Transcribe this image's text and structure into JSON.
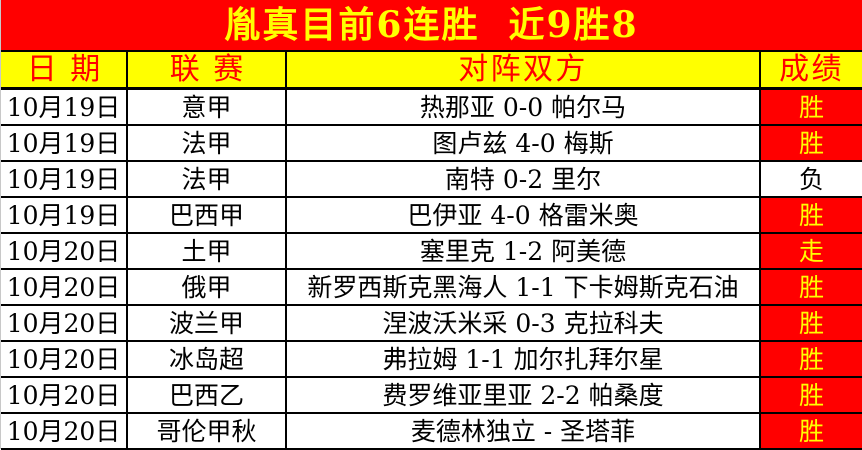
{
  "title": {
    "text": "胤真目前6连胜  近9胜8"
  },
  "colors": {
    "title_bg": "#ff0000",
    "title_text": "#ffff00",
    "header_bg": "#ffff00",
    "header_text": "#ff0000",
    "win_bg": "#ff0000",
    "win_text": "#ffff00",
    "loss_bg": "#ffffff",
    "loss_text": "#000000",
    "border": "#000000"
  },
  "table": {
    "headers": [
      "日期",
      "联赛",
      "对阵双方",
      "成绩"
    ],
    "rows": [
      {
        "date": "10月19日",
        "league": "意甲",
        "match": "热那亚 0-0 帕尔马",
        "result": "胜",
        "highlight": true
      },
      {
        "date": "10月19日",
        "league": "法甲",
        "match": "图卢兹 4-0 梅斯",
        "result": "胜",
        "highlight": true
      },
      {
        "date": "10月19日",
        "league": "法甲",
        "match": "南特 0-2 里尔",
        "result": "负",
        "highlight": false
      },
      {
        "date": "10月19日",
        "league": "巴西甲",
        "match": "巴伊亚 4-0 格雷米奥",
        "result": "胜",
        "highlight": true
      },
      {
        "date": "10月20日",
        "league": "土甲",
        "match": "塞里克 1-2 阿美德",
        "result": "走",
        "highlight": true
      },
      {
        "date": "10月20日",
        "league": "俄甲",
        "match": "新罗西斯克黑海人 1-1 下卡姆斯克石油",
        "result": "胜",
        "highlight": true
      },
      {
        "date": "10月20日",
        "league": "波兰甲",
        "match": "涅波沃米采 0-3 克拉科夫",
        "result": "胜",
        "highlight": true
      },
      {
        "date": "10月20日",
        "league": "冰岛超",
        "match": "弗拉姆 1-1 加尔扎拜尔星",
        "result": "胜",
        "highlight": true
      },
      {
        "date": "10月20日",
        "league": "巴西乙",
        "match": "费罗维亚里亚 2-2 帕桑度",
        "result": "胜",
        "highlight": true
      },
      {
        "date": "10月20日",
        "league": "哥伦甲秋",
        "match": "麦德林独立 - 圣塔菲",
        "result": "胜",
        "highlight": true
      }
    ]
  }
}
